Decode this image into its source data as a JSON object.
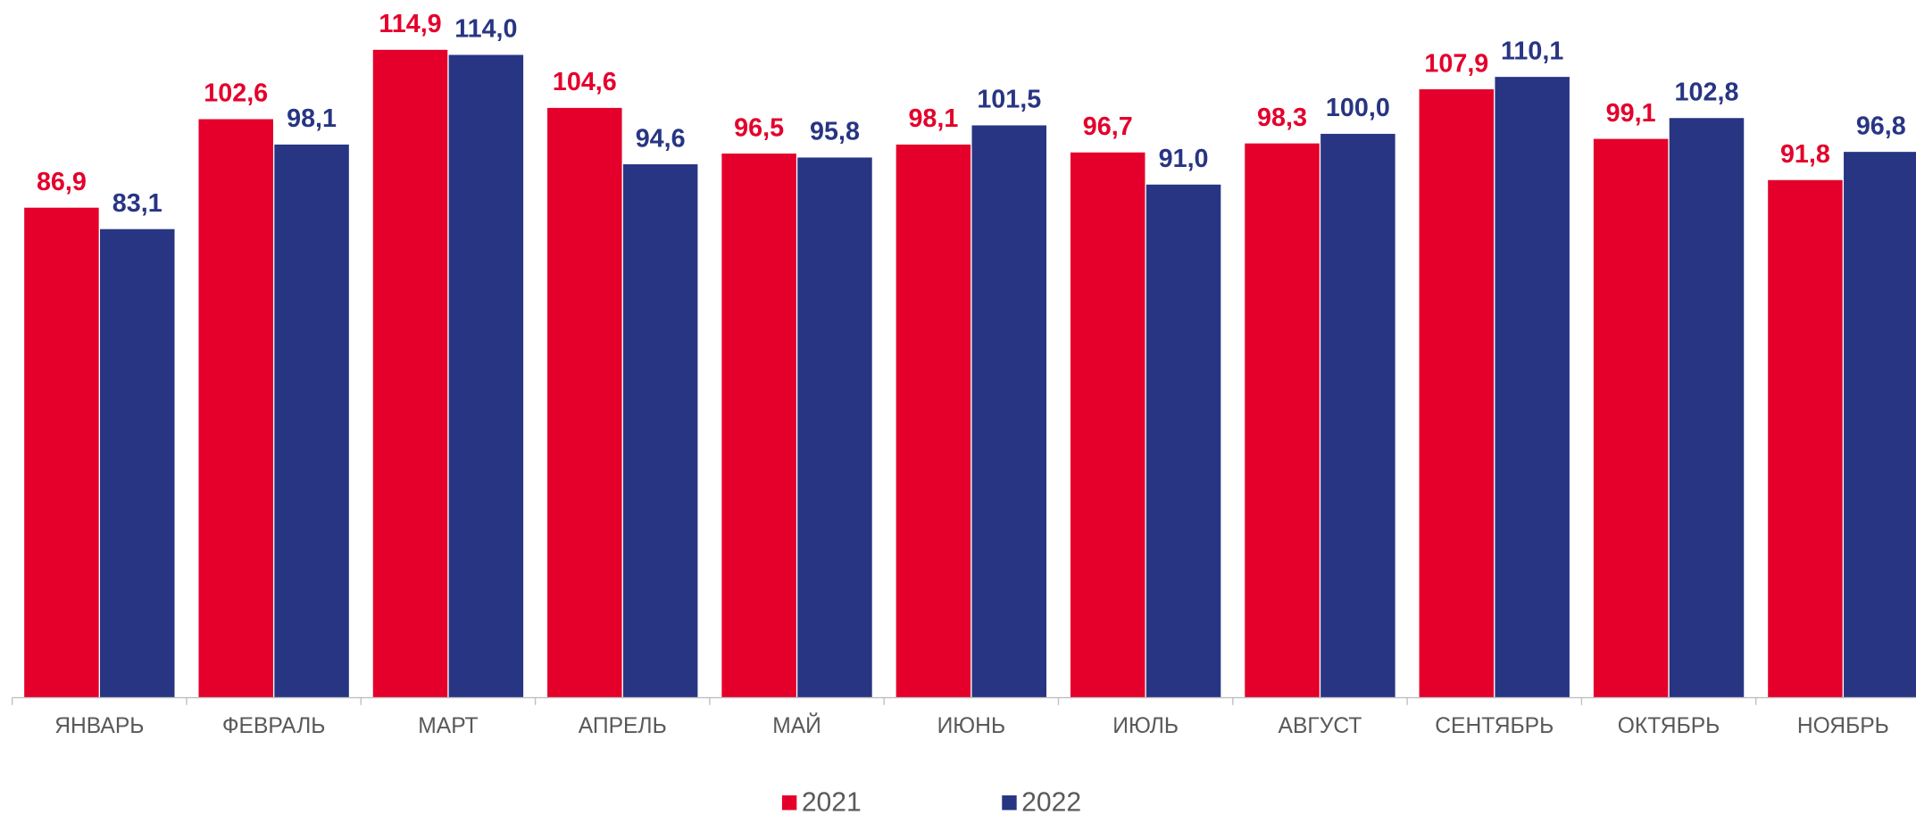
{
  "chart_data": {
    "type": "bar",
    "categories": [
      "ЯНВАРЬ",
      "ФЕВРАЛЬ",
      "МАРТ",
      "АПРЕЛЬ",
      "МАЙ",
      "ИЮНЬ",
      "ИЮЛЬ",
      "АВГУСТ",
      "СЕНТЯБРЬ",
      "ОКТЯБРЬ",
      "НОЯБРЬ"
    ],
    "series": [
      {
        "name": "2021",
        "color": "#e4002b",
        "values": [
          86.9,
          102.6,
          114.9,
          104.6,
          96.5,
          98.1,
          96.7,
          98.3,
          107.9,
          99.1,
          91.8
        ],
        "value_labels": [
          "86,9",
          "102,6",
          "114,9",
          "104,6",
          "96,5",
          "98,1",
          "96,7",
          "98,3",
          "107,9",
          "99,1",
          "91,8"
        ]
      },
      {
        "name": "2022",
        "color": "#283583",
        "values": [
          83.1,
          98.1,
          114.0,
          94.6,
          95.8,
          101.5,
          91.0,
          100.0,
          110.1,
          102.8,
          96.8
        ],
        "value_labels": [
          "83,1",
          "98,1",
          "114,0",
          "94,6",
          "95,8",
          "101,5",
          "91,0",
          "100,0",
          "110,1",
          "102,8",
          "96,8"
        ]
      }
    ],
    "ylim": [
      0,
      120
    ],
    "legend": "bottom"
  }
}
